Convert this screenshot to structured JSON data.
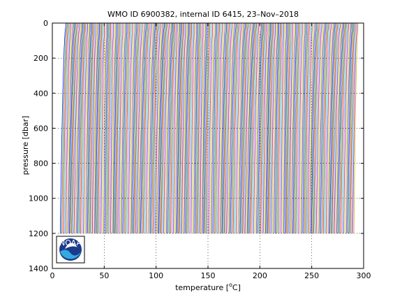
{
  "chart_data": {
    "type": "line",
    "title": "WMO ID 6900382, internal ID 6415, 23–Nov–2018",
    "xlabel_main": "temperature [",
    "xlabel_sup": "o",
    "xlabel_end": "C]",
    "ylabel": "pressure [dbar]",
    "xlim": [
      0,
      300
    ],
    "ylim": [
      0,
      1400
    ],
    "y_reversed": true,
    "grid": "dotted",
    "xticks": [
      "0",
      "50",
      "100",
      "150",
      "200",
      "250",
      "300"
    ],
    "yticks": [
      "0",
      "200",
      "400",
      "600",
      "800",
      "1000",
      "1200",
      "1400"
    ],
    "series_colors": [
      "#0000ff",
      "#008000",
      "#ff0000",
      "#00bfbf",
      "#bf00bf",
      "#bfbf00",
      "#404040"
    ],
    "profile_offset_start": 7,
    "profile_offset_end": 290,
    "profile_count": 230,
    "profile_max_pressure": 1200,
    "profile_shape_note": "warm surface ~+5, cooling to ~0 at 1200 dbar"
  },
  "logo": {
    "text": "NOAA",
    "name": "noaa-logo"
  }
}
